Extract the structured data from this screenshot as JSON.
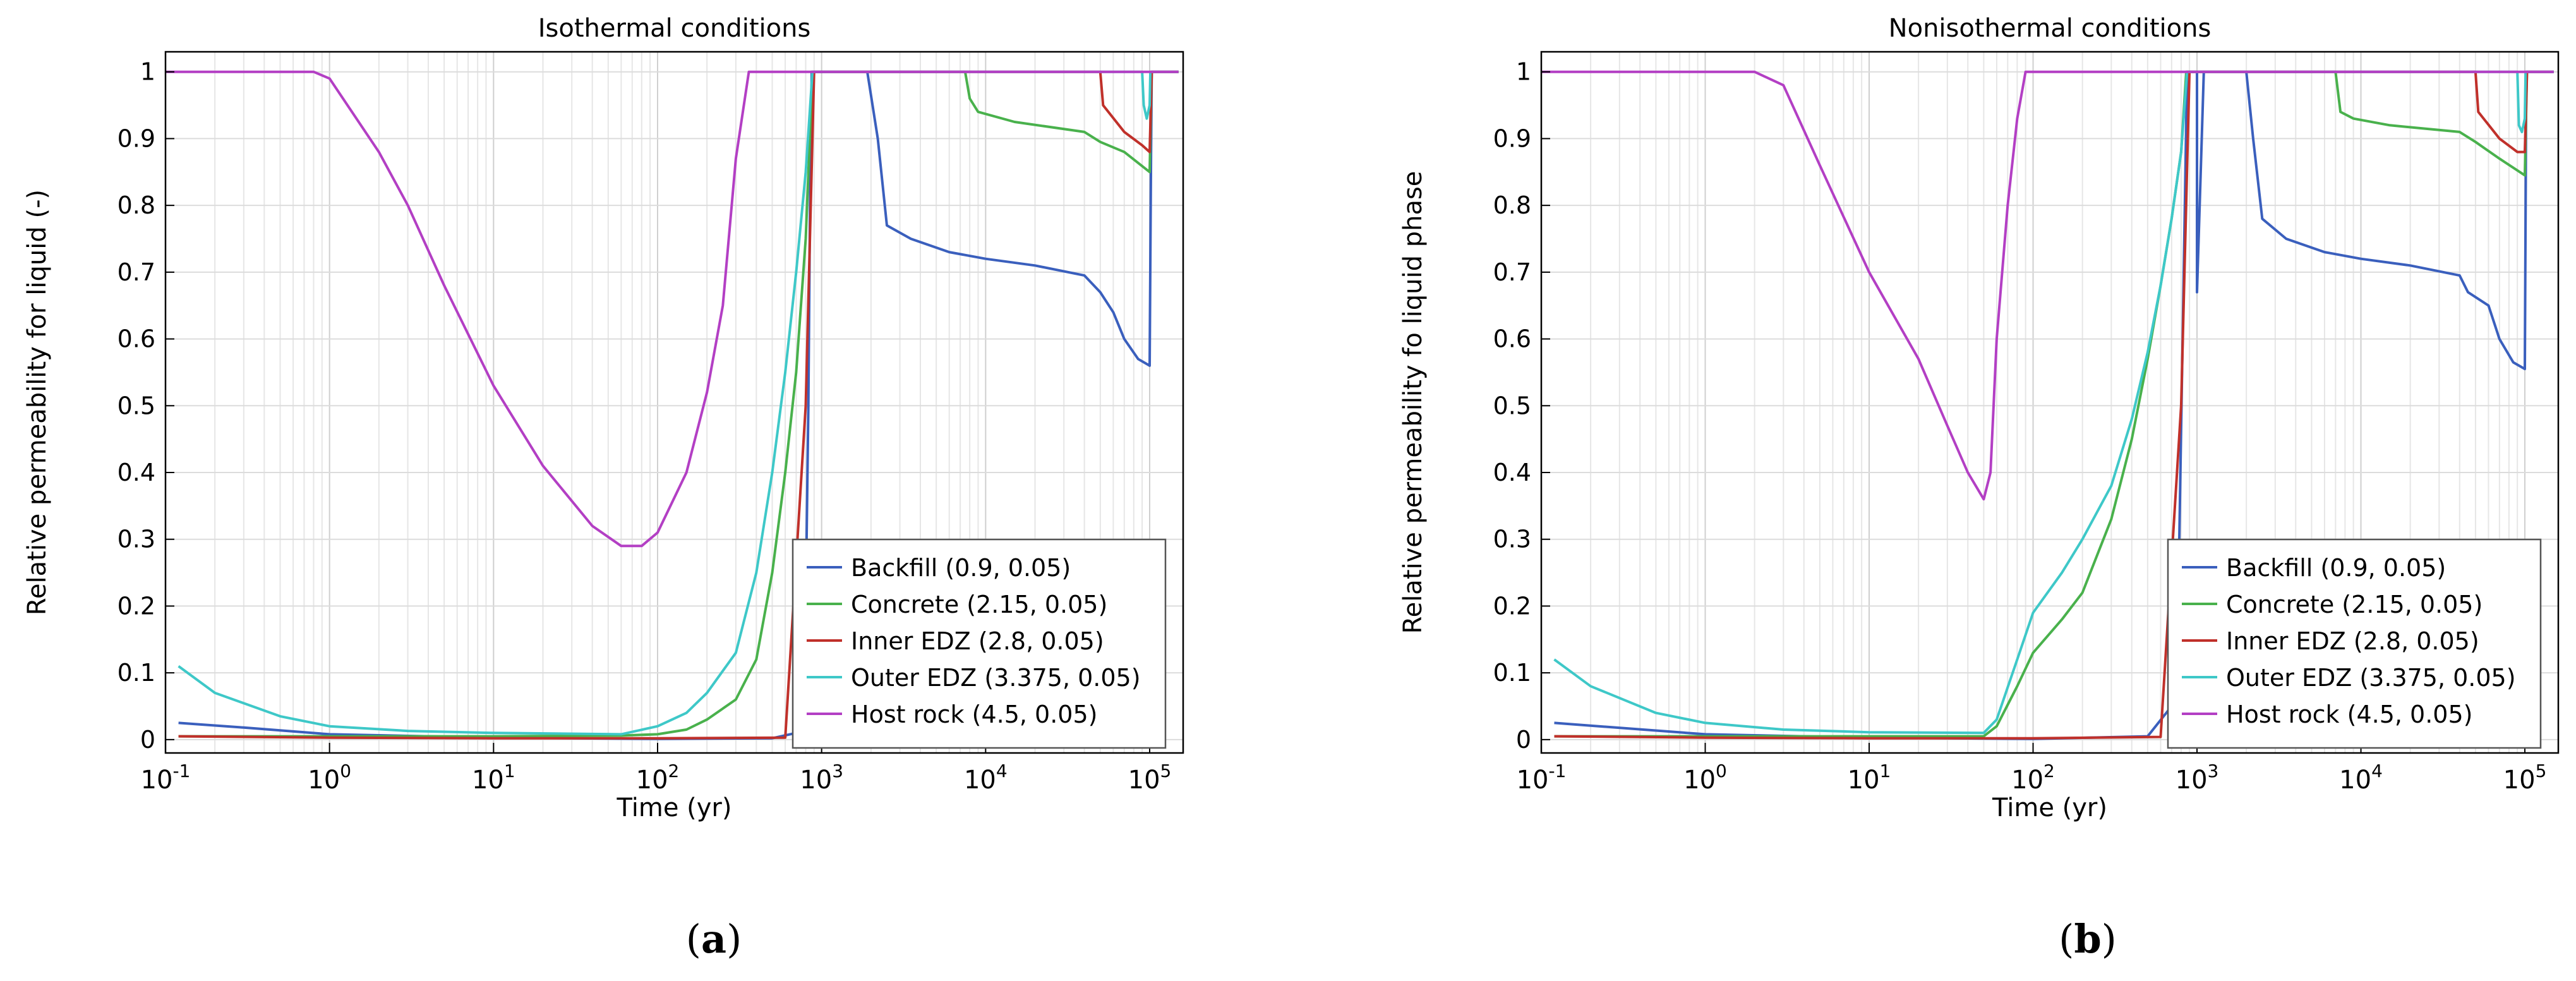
{
  "figure": {
    "panel_labels": [
      {
        "open": "(",
        "letter": "a",
        "close": ")"
      },
      {
        "open": "(",
        "letter": "b",
        "close": ")"
      }
    ]
  },
  "chart_data": [
    {
      "type": "line",
      "title": "Isothermal conditions",
      "xlabel": "Time (yr)",
      "ylabel": "Relative permeability for liquid (-)",
      "xscale": "log",
      "xlim": [
        0.1,
        160000
      ],
      "ylim": [
        -0.02,
        1.03
      ],
      "yticks": [
        0,
        0.1,
        0.2,
        0.3,
        0.4,
        0.5,
        0.6,
        0.7,
        0.8,
        0.9,
        1
      ],
      "xticks": [
        {
          "base": "10",
          "exp": "-1",
          "value": 0.1
        },
        {
          "base": "10",
          "exp": "0",
          "value": 1
        },
        {
          "base": "10",
          "exp": "1",
          "value": 10
        },
        {
          "base": "10",
          "exp": "2",
          "value": 100
        },
        {
          "base": "10",
          "exp": "3",
          "value": 1000
        },
        {
          "base": "10",
          "exp": "4",
          "value": 10000
        },
        {
          "base": "10",
          "exp": "5",
          "value": 100000
        }
      ],
      "grid": true,
      "legend_position": "bottom-right",
      "series": [
        {
          "name": "Backfill (0.9, 0.05)",
          "color": "#3a5fbd",
          "points": [
            [
              0.12,
              0.025
            ],
            [
              0.3,
              0.018
            ],
            [
              1,
              0.008
            ],
            [
              10,
              0.003
            ],
            [
              100,
              0.001
            ],
            [
              500,
              0.002
            ],
            [
              700,
              0.01
            ],
            [
              760,
              0.05
            ],
            [
              800,
              0.2
            ],
            [
              830,
              0.5
            ],
            [
              850,
              0.8
            ],
            [
              870,
              1
            ],
            [
              1000,
              1
            ],
            [
              1900,
              1
            ],
            [
              2200,
              0.9
            ],
            [
              2500,
              0.77
            ],
            [
              3500,
              0.75
            ],
            [
              6000,
              0.73
            ],
            [
              10000,
              0.72
            ],
            [
              20000,
              0.71
            ],
            [
              40000,
              0.695
            ],
            [
              50000,
              0.67
            ],
            [
              60000,
              0.64
            ],
            [
              70000,
              0.6
            ],
            [
              85000,
              0.57
            ],
            [
              100000,
              0.56
            ],
            [
              102000,
              0.88
            ],
            [
              103000,
              1
            ],
            [
              150000,
              1
            ]
          ]
        },
        {
          "name": "Concrete (2.15, 0.05)",
          "color": "#49b14c",
          "points": [
            [
              0.12,
              0.005
            ],
            [
              1,
              0.005
            ],
            [
              10,
              0.005
            ],
            [
              60,
              0.006
            ],
            [
              100,
              0.008
            ],
            [
              150,
              0.015
            ],
            [
              200,
              0.03
            ],
            [
              300,
              0.06
            ],
            [
              400,
              0.12
            ],
            [
              500,
              0.25
            ],
            [
              600,
              0.4
            ],
            [
              700,
              0.55
            ],
            [
              800,
              0.75
            ],
            [
              880,
              1
            ],
            [
              7500,
              1
            ],
            [
              8000,
              0.96
            ],
            [
              9000,
              0.94
            ],
            [
              15000,
              0.925
            ],
            [
              40000,
              0.91
            ],
            [
              50000,
              0.895
            ],
            [
              70000,
              0.88
            ],
            [
              100000,
              0.85
            ],
            [
              103000,
              1
            ],
            [
              150000,
              1
            ]
          ]
        },
        {
          "name": "Inner EDZ (2.8, 0.05)",
          "color": "#c0302a",
          "points": [
            [
              0.12,
              0.005
            ],
            [
              1,
              0.003
            ],
            [
              10,
              0.002
            ],
            [
              100,
              0.002
            ],
            [
              600,
              0.003
            ],
            [
              800,
              0.5
            ],
            [
              900,
              1
            ],
            [
              50000,
              1
            ],
            [
              52000,
              0.95
            ],
            [
              70000,
              0.91
            ],
            [
              90000,
              0.89
            ],
            [
              100000,
              0.88
            ],
            [
              103000,
              1
            ],
            [
              150000,
              1
            ]
          ]
        },
        {
          "name": "Outer EDZ (3.375, 0.05)",
          "color": "#3ec8c8",
          "points": [
            [
              0.12,
              0.11
            ],
            [
              0.2,
              0.07
            ],
            [
              0.5,
              0.035
            ],
            [
              1,
              0.02
            ],
            [
              3,
              0.013
            ],
            [
              10,
              0.01
            ],
            [
              60,
              0.008
            ],
            [
              100,
              0.02
            ],
            [
              150,
              0.04
            ],
            [
              200,
              0.07
            ],
            [
              300,
              0.13
            ],
            [
              400,
              0.25
            ],
            [
              500,
              0.4
            ],
            [
              600,
              0.55
            ],
            [
              700,
              0.7
            ],
            [
              800,
              0.85
            ],
            [
              880,
              1
            ],
            [
              90000,
              1
            ],
            [
              92000,
              0.95
            ],
            [
              96000,
              0.93
            ],
            [
              100000,
              0.95
            ],
            [
              101000,
              1
            ],
            [
              150000,
              1
            ]
          ]
        },
        {
          "name": "Host rock (4.5, 0.05)",
          "color": "#b33fc4",
          "points": [
            [
              0.1,
              1
            ],
            [
              0.8,
              1
            ],
            [
              1,
              0.99
            ],
            [
              2,
              0.88
            ],
            [
              3,
              0.8
            ],
            [
              5,
              0.68
            ],
            [
              10,
              0.53
            ],
            [
              20,
              0.41
            ],
            [
              40,
              0.32
            ],
            [
              60,
              0.29
            ],
            [
              80,
              0.29
            ],
            [
              100,
              0.31
            ],
            [
              150,
              0.4
            ],
            [
              200,
              0.52
            ],
            [
              250,
              0.65
            ],
            [
              300,
              0.87
            ],
            [
              360,
              1
            ],
            [
              150000,
              1
            ]
          ]
        }
      ]
    },
    {
      "type": "line",
      "title": "Nonisothermal conditions",
      "xlabel": "Time (yr)",
      "ylabel": "Relative permeability fo liquid phase",
      "xscale": "log",
      "xlim": [
        0.1,
        160000
      ],
      "ylim": [
        -0.02,
        1.03
      ],
      "yticks": [
        0,
        0.1,
        0.2,
        0.3,
        0.4,
        0.5,
        0.6,
        0.7,
        0.8,
        0.9,
        1
      ],
      "xticks": [
        {
          "base": "10",
          "exp": "-1",
          "value": 0.1
        },
        {
          "base": "10",
          "exp": "0",
          "value": 1
        },
        {
          "base": "10",
          "exp": "1",
          "value": 10
        },
        {
          "base": "10",
          "exp": "2",
          "value": 100
        },
        {
          "base": "10",
          "exp": "3",
          "value": 1000
        },
        {
          "base": "10",
          "exp": "4",
          "value": 10000
        },
        {
          "base": "10",
          "exp": "5",
          "value": 100000
        }
      ],
      "grid": true,
      "legend_position": "bottom-right",
      "series": [
        {
          "name": "Backfill (0.9, 0.05)",
          "color": "#3a5fbd",
          "points": [
            [
              0.12,
              0.025
            ],
            [
              1,
              0.008
            ],
            [
              10,
              0.003
            ],
            [
              100,
              0.001
            ],
            [
              500,
              0.005
            ],
            [
              700,
              0.05
            ],
            [
              780,
              0.3
            ],
            [
              830,
              0.7
            ],
            [
              870,
              1
            ],
            [
              1000,
              1
            ],
            [
              1000,
              0.67
            ],
            [
              1100,
              1
            ],
            [
              2000,
              1
            ],
            [
              2200,
              0.9
            ],
            [
              2500,
              0.78
            ],
            [
              3500,
              0.75
            ],
            [
              6000,
              0.73
            ],
            [
              10000,
              0.72
            ],
            [
              20000,
              0.71
            ],
            [
              40000,
              0.695
            ],
            [
              45000,
              0.67
            ],
            [
              60000,
              0.65
            ],
            [
              70000,
              0.6
            ],
            [
              85000,
              0.565
            ],
            [
              100000,
              0.555
            ],
            [
              102000,
              1
            ],
            [
              150000,
              1
            ]
          ]
        },
        {
          "name": "Concrete (2.15, 0.05)",
          "color": "#49b14c",
          "points": [
            [
              0.12,
              0.005
            ],
            [
              1,
              0.005
            ],
            [
              10,
              0.005
            ],
            [
              50,
              0.005
            ],
            [
              60,
              0.02
            ],
            [
              80,
              0.08
            ],
            [
              100,
              0.13
            ],
            [
              150,
              0.18
            ],
            [
              200,
              0.22
            ],
            [
              300,
              0.33
            ],
            [
              400,
              0.45
            ],
            [
              500,
              0.57
            ],
            [
              600,
              0.68
            ],
            [
              700,
              0.78
            ],
            [
              800,
              0.88
            ],
            [
              860,
              1
            ],
            [
              7000,
              1
            ],
            [
              7500,
              0.94
            ],
            [
              9000,
              0.93
            ],
            [
              15000,
              0.92
            ],
            [
              40000,
              0.91
            ],
            [
              50000,
              0.895
            ],
            [
              70000,
              0.87
            ],
            [
              100000,
              0.845
            ],
            [
              103000,
              1
            ],
            [
              150000,
              1
            ]
          ]
        },
        {
          "name": "Inner EDZ (2.8, 0.05)",
          "color": "#c0302a",
          "points": [
            [
              0.12,
              0.005
            ],
            [
              1,
              0.003
            ],
            [
              10,
              0.002
            ],
            [
              100,
              0.002
            ],
            [
              600,
              0.004
            ],
            [
              800,
              0.5
            ],
            [
              900,
              1
            ],
            [
              50000,
              1
            ],
            [
              52000,
              0.94
            ],
            [
              70000,
              0.9
            ],
            [
              90000,
              0.88
            ],
            [
              100000,
              0.88
            ],
            [
              103000,
              1
            ],
            [
              150000,
              1
            ]
          ]
        },
        {
          "name": "Outer EDZ (3.375, 0.05)",
          "color": "#3ec8c8",
          "points": [
            [
              0.12,
              0.12
            ],
            [
              0.2,
              0.08
            ],
            [
              0.5,
              0.04
            ],
            [
              1,
              0.025
            ],
            [
              3,
              0.015
            ],
            [
              10,
              0.011
            ],
            [
              50,
              0.01
            ],
            [
              60,
              0.03
            ],
            [
              80,
              0.12
            ],
            [
              100,
              0.19
            ],
            [
              150,
              0.25
            ],
            [
              200,
              0.3
            ],
            [
              300,
              0.38
            ],
            [
              400,
              0.48
            ],
            [
              500,
              0.58
            ],
            [
              600,
              0.68
            ],
            [
              700,
              0.78
            ],
            [
              800,
              0.88
            ],
            [
              870,
              1
            ],
            [
              90000,
              1
            ],
            [
              92000,
              0.92
            ],
            [
              96000,
              0.91
            ],
            [
              100000,
              0.93
            ],
            [
              101000,
              1
            ],
            [
              150000,
              1
            ]
          ]
        },
        {
          "name": "Host rock (4.5, 0.05)",
          "color": "#b33fc4",
          "points": [
            [
              0.1,
              1
            ],
            [
              2,
              1
            ],
            [
              3,
              0.98
            ],
            [
              5,
              0.86
            ],
            [
              10,
              0.7
            ],
            [
              20,
              0.57
            ],
            [
              30,
              0.47
            ],
            [
              40,
              0.4
            ],
            [
              50,
              0.36
            ],
            [
              55,
              0.4
            ],
            [
              60,
              0.6
            ],
            [
              70,
              0.8
            ],
            [
              80,
              0.93
            ],
            [
              90,
              1
            ],
            [
              150000,
              1
            ]
          ]
        }
      ]
    }
  ]
}
